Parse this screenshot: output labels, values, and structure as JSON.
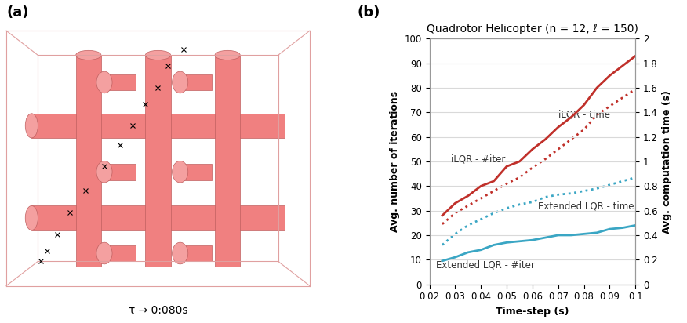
{
  "panels": {
    "a": "(a)",
    "b": "(b)"
  },
  "caption": "τ → 0:080s",
  "chart_data": {
    "type": "line",
    "title": "Quadrotor Helicopter (n = 12, ℓ = 150)",
    "x_label": "Time-step (s)",
    "y_label": "Avg. number of iterations",
    "y2_label": "Avg. computation time (s)",
    "x": [
      0.025,
      0.03,
      0.035,
      0.04,
      0.045,
      0.05,
      0.055,
      0.06,
      0.065,
      0.07,
      0.075,
      0.08,
      0.085,
      0.09,
      0.095,
      0.1
    ],
    "xlim": [
      0.02,
      0.1
    ],
    "xticks": [
      0.02,
      0.03,
      0.04,
      0.05,
      0.06,
      0.07,
      0.08,
      0.09,
      0.1
    ],
    "ylim": [
      0,
      100
    ],
    "yticks": [
      0,
      10,
      20,
      30,
      40,
      50,
      60,
      70,
      80,
      90,
      100
    ],
    "y2lim": [
      0,
      2
    ],
    "y2ticks": [
      0,
      0.2,
      0.4,
      0.6,
      0.8,
      1,
      1.2,
      1.4,
      1.6,
      1.8,
      2
    ],
    "grid": true,
    "series": [
      {
        "name": "iLQR - #iter",
        "color": "#c0302a",
        "line_style": "solid",
        "axis": "y",
        "values": [
          28,
          33,
          36,
          40,
          42,
          48,
          50,
          55,
          59,
          64,
          68,
          73,
          80,
          85,
          89,
          93
        ]
      },
      {
        "name": "iLQR - time",
        "color": "#c0302a",
        "line_style": "dotted",
        "axis": "y2",
        "values": [
          0.49,
          0.58,
          0.64,
          0.7,
          0.76,
          0.82,
          0.87,
          0.95,
          1.02,
          1.1,
          1.18,
          1.26,
          1.38,
          1.45,
          1.52,
          1.59
        ]
      },
      {
        "name": "Extended LQR - time",
        "color": "#3aa6c4",
        "line_style": "dotted",
        "axis": "y2",
        "values": [
          0.32,
          0.41,
          0.48,
          0.53,
          0.58,
          0.62,
          0.65,
          0.67,
          0.71,
          0.73,
          0.74,
          0.76,
          0.78,
          0.81,
          0.84,
          0.87
        ]
      },
      {
        "name": "Extended LQR - #iter",
        "color": "#3aa6c4",
        "line_style": "solid",
        "axis": "y",
        "values": [
          9.5,
          11,
          13,
          14,
          16,
          17,
          17.5,
          18,
          19,
          20,
          20,
          20.5,
          21,
          22.5,
          23,
          24
        ]
      }
    ]
  }
}
